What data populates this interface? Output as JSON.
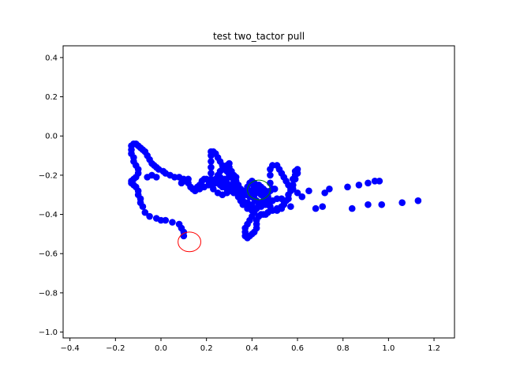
{
  "chart_data": {
    "type": "scatter",
    "title": "test two_tactor pull",
    "xlabel": "",
    "ylabel": "",
    "xlim": [
      -0.43,
      1.29
    ],
    "ylim": [
      -1.03,
      0.46
    ],
    "xticks": [
      -0.4,
      -0.2,
      0.0,
      0.2,
      0.4,
      0.6,
      0.8,
      1.0,
      1.2
    ],
    "xtick_labels": [
      "−0.4",
      "−0.2",
      "0.0",
      "0.2",
      "0.4",
      "0.6",
      "0.8",
      "1.0",
      "1.2"
    ],
    "yticks": [
      0.4,
      0.2,
      0.0,
      -0.2,
      -0.4,
      -0.6,
      -0.8,
      -1.0
    ],
    "ytick_labels": [
      "0.4",
      "0.2",
      "0.0",
      "−0.2",
      "−0.4",
      "−0.6",
      "−0.8",
      "−1.0"
    ],
    "grid": false,
    "series": [
      {
        "color": "#0000ff",
        "marker": "filled-circle",
        "points": [
          [
            0.1,
            -0.51
          ],
          [
            0.1,
            -0.49
          ],
          [
            0.09,
            -0.47
          ],
          [
            0.08,
            -0.45
          ],
          [
            0.05,
            -0.44
          ],
          [
            0.02,
            -0.43
          ],
          [
            0.0,
            -0.43
          ],
          [
            -0.02,
            -0.42
          ],
          [
            -0.05,
            -0.41
          ],
          [
            -0.07,
            -0.39
          ],
          [
            -0.08,
            -0.36
          ],
          [
            -0.09,
            -0.34
          ],
          [
            -0.09,
            -0.32
          ],
          [
            -0.1,
            -0.3
          ],
          [
            -0.1,
            -0.28
          ],
          [
            -0.11,
            -0.26
          ],
          [
            -0.12,
            -0.25
          ],
          [
            -0.13,
            -0.24
          ],
          [
            -0.13,
            -0.23
          ],
          [
            -0.12,
            -0.22
          ],
          [
            -0.11,
            -0.21
          ],
          [
            -0.1,
            -0.19
          ],
          [
            -0.1,
            -0.17
          ],
          [
            -0.11,
            -0.15
          ],
          [
            -0.12,
            -0.13
          ],
          [
            -0.12,
            -0.11
          ],
          [
            -0.13,
            -0.09
          ],
          [
            -0.13,
            -0.07
          ],
          [
            -0.13,
            -0.05
          ],
          [
            -0.12,
            -0.04
          ],
          [
            -0.11,
            -0.04
          ],
          [
            -0.1,
            -0.05
          ],
          [
            -0.09,
            -0.06
          ],
          [
            -0.08,
            -0.07
          ],
          [
            -0.07,
            -0.08
          ],
          [
            -0.06,
            -0.1
          ],
          [
            -0.05,
            -0.12
          ],
          [
            -0.04,
            -0.14
          ],
          [
            -0.03,
            -0.15
          ],
          [
            -0.02,
            -0.16
          ],
          [
            -0.01,
            -0.17
          ],
          [
            0.01,
            -0.18
          ],
          [
            0.02,
            -0.19
          ],
          [
            0.04,
            -0.2
          ],
          [
            0.06,
            -0.21
          ],
          [
            0.08,
            -0.21
          ],
          [
            0.1,
            -0.22
          ],
          [
            0.11,
            -0.23
          ],
          [
            0.12,
            -0.24
          ],
          [
            0.13,
            -0.26
          ],
          [
            0.14,
            -0.27
          ],
          [
            0.15,
            -0.27
          ],
          [
            0.16,
            -0.26
          ],
          [
            0.17,
            -0.25
          ],
          [
            0.18,
            -0.23
          ],
          [
            0.19,
            -0.22
          ],
          [
            0.2,
            -0.22
          ],
          [
            0.21,
            -0.23
          ],
          [
            0.22,
            -0.22
          ],
          [
            0.22,
            -0.19
          ],
          [
            0.22,
            -0.16
          ],
          [
            0.22,
            -0.13
          ],
          [
            0.22,
            -0.1
          ],
          [
            0.22,
            -0.08
          ],
          [
            0.23,
            -0.08
          ],
          [
            0.24,
            -0.09
          ],
          [
            0.25,
            -0.11
          ],
          [
            0.26,
            -0.13
          ],
          [
            0.27,
            -0.15
          ],
          [
            0.28,
            -0.17
          ],
          [
            0.29,
            -0.18
          ],
          [
            0.3,
            -0.19
          ],
          [
            0.31,
            -0.21
          ],
          [
            0.32,
            -0.23
          ],
          [
            0.33,
            -0.24
          ],
          [
            0.34,
            -0.25
          ],
          [
            0.35,
            -0.27
          ],
          [
            0.36,
            -0.28
          ],
          [
            0.37,
            -0.29
          ],
          [
            0.38,
            -0.3
          ],
          [
            0.39,
            -0.3
          ],
          [
            0.4,
            -0.28
          ],
          [
            0.41,
            -0.26
          ],
          [
            0.42,
            -0.25
          ],
          [
            0.43,
            -0.26
          ],
          [
            0.44,
            -0.27
          ],
          [
            0.45,
            -0.27
          ],
          [
            0.46,
            -0.28
          ],
          [
            0.47,
            -0.29
          ],
          [
            0.47,
            -0.31
          ],
          [
            0.46,
            -0.32
          ],
          [
            0.45,
            -0.33
          ],
          [
            0.44,
            -0.34
          ],
          [
            0.43,
            -0.35
          ],
          [
            0.42,
            -0.37
          ],
          [
            0.41,
            -0.39
          ],
          [
            0.4,
            -0.41
          ],
          [
            0.39,
            -0.43
          ],
          [
            0.38,
            -0.45
          ],
          [
            0.37,
            -0.47
          ],
          [
            0.37,
            -0.49
          ],
          [
            0.37,
            -0.51
          ],
          [
            0.38,
            -0.52
          ],
          [
            0.39,
            -0.51
          ],
          [
            0.4,
            -0.5
          ],
          [
            0.41,
            -0.49
          ],
          [
            0.42,
            -0.47
          ],
          [
            0.42,
            -0.45
          ],
          [
            0.42,
            -0.43
          ],
          [
            0.43,
            -0.41
          ],
          [
            0.44,
            -0.4
          ],
          [
            0.45,
            -0.4
          ],
          [
            0.46,
            -0.4
          ],
          [
            0.47,
            -0.39
          ],
          [
            0.49,
            -0.38
          ],
          [
            0.51,
            -0.38
          ],
          [
            0.53,
            -0.37
          ],
          [
            0.54,
            -0.35
          ],
          [
            0.54,
            -0.33
          ],
          [
            0.53,
            -0.32
          ],
          [
            0.51,
            -0.32
          ],
          [
            0.49,
            -0.33
          ],
          [
            0.47,
            -0.34
          ],
          [
            0.45,
            -0.35
          ],
          [
            0.43,
            -0.34
          ],
          [
            0.41,
            -0.32
          ],
          [
            0.39,
            -0.31
          ],
          [
            0.37,
            -0.3
          ],
          [
            0.35,
            -0.29
          ],
          [
            0.33,
            -0.28
          ],
          [
            0.31,
            -0.28
          ],
          [
            0.29,
            -0.27
          ],
          [
            0.27,
            -0.26
          ],
          [
            0.26,
            -0.25
          ],
          [
            0.24,
            -0.24
          ],
          [
            0.23,
            -0.24
          ],
          [
            0.21,
            -0.25
          ],
          [
            0.19,
            -0.26
          ],
          [
            0.17,
            -0.27
          ],
          [
            0.15,
            -0.28
          ],
          [
            0.14,
            -0.27
          ],
          [
            0.23,
            -0.27
          ],
          [
            0.25,
            -0.29
          ],
          [
            0.27,
            -0.3
          ],
          [
            0.29,
            -0.29
          ],
          [
            0.31,
            -0.27
          ],
          [
            0.32,
            -0.25
          ],
          [
            0.33,
            -0.23
          ],
          [
            0.33,
            -0.21
          ],
          [
            0.32,
            -0.2
          ],
          [
            0.3,
            -0.21
          ],
          [
            0.28,
            -0.22
          ],
          [
            0.27,
            -0.24
          ],
          [
            0.28,
            -0.26
          ],
          [
            0.3,
            -0.27
          ],
          [
            0.32,
            -0.29
          ],
          [
            0.34,
            -0.31
          ],
          [
            0.36,
            -0.33
          ],
          [
            0.38,
            -0.34
          ],
          [
            0.4,
            -0.35
          ],
          [
            0.42,
            -0.33
          ],
          [
            0.44,
            -0.3
          ],
          [
            0.45,
            -0.28
          ],
          [
            0.44,
            -0.26
          ],
          [
            0.43,
            -0.25
          ],
          [
            0.41,
            -0.24
          ],
          [
            0.4,
            -0.23
          ],
          [
            0.39,
            -0.24
          ],
          [
            0.38,
            -0.26
          ],
          [
            0.38,
            -0.28
          ],
          [
            0.39,
            -0.3
          ],
          [
            0.41,
            -0.3
          ],
          [
            0.42,
            -0.29
          ],
          [
            0.42,
            -0.27
          ],
          [
            0.41,
            -0.26
          ],
          [
            0.43,
            -0.28
          ],
          [
            0.44,
            -0.29
          ],
          [
            0.46,
            -0.3
          ],
          [
            0.47,
            -0.29
          ],
          [
            0.48,
            -0.28
          ],
          [
            0.49,
            -0.27
          ],
          [
            0.48,
            -0.24
          ],
          [
            0.48,
            -0.2
          ],
          [
            0.48,
            -0.17
          ],
          [
            0.49,
            -0.15
          ],
          [
            0.51,
            -0.15
          ],
          [
            0.52,
            -0.17
          ],
          [
            0.53,
            -0.19
          ],
          [
            0.54,
            -0.21
          ],
          [
            0.55,
            -0.23
          ],
          [
            0.56,
            -0.25
          ],
          [
            0.57,
            -0.27
          ],
          [
            0.58,
            -0.27
          ],
          [
            0.58,
            -0.25
          ],
          [
            0.58,
            -0.22
          ],
          [
            0.59,
            -0.2
          ],
          [
            0.59,
            -0.18
          ],
          [
            0.6,
            -0.17
          ],
          [
            0.6,
            -0.19
          ],
          [
            0.59,
            -0.22
          ],
          [
            0.58,
            -0.25
          ],
          [
            0.57,
            -0.28
          ],
          [
            0.56,
            -0.3
          ],
          [
            0.55,
            -0.33
          ],
          [
            0.54,
            -0.35
          ],
          [
            0.53,
            -0.36
          ],
          [
            0.51,
            -0.37
          ],
          [
            0.48,
            -0.36
          ],
          [
            0.46,
            -0.35
          ],
          [
            0.44,
            -0.36
          ],
          [
            0.42,
            -0.37
          ],
          [
            0.4,
            -0.38
          ],
          [
            0.38,
            -0.37
          ],
          [
            0.36,
            -0.35
          ],
          [
            0.35,
            -0.33
          ],
          [
            0.34,
            -0.31
          ],
          [
            0.36,
            -0.3
          ],
          [
            0.38,
            -0.29
          ],
          [
            0.33,
            -0.26
          ],
          [
            0.31,
            -0.25
          ],
          [
            0.29,
            -0.24
          ],
          [
            0.27,
            -0.23
          ],
          [
            0.25,
            -0.22
          ],
          [
            0.25,
            -0.2
          ],
          [
            0.26,
            -0.18
          ],
          [
            0.27,
            -0.17
          ],
          [
            0.28,
            -0.16
          ],
          [
            0.29,
            -0.15
          ],
          [
            0.3,
            -0.14
          ],
          [
            0.3,
            -0.16
          ],
          [
            0.31,
            -0.18
          ],
          [
            0.3,
            -0.2
          ],
          [
            0.26,
            -0.21
          ],
          [
            0.24,
            -0.22
          ],
          [
            0.12,
            -0.22
          ],
          [
            0.1,
            -0.23
          ],
          [
            0.09,
            -0.24
          ],
          [
            -0.02,
            -0.21
          ],
          [
            -0.04,
            -0.2
          ],
          [
            -0.06,
            -0.21
          ],
          [
            0.5,
            -0.27
          ],
          [
            0.56,
            -0.32
          ],
          [
            0.57,
            -0.36
          ],
          [
            0.62,
            -0.31
          ],
          [
            0.6,
            -0.29
          ],
          [
            0.65,
            -0.28
          ],
          [
            0.68,
            -0.37
          ],
          [
            0.71,
            -0.36
          ],
          [
            0.72,
            -0.29
          ],
          [
            0.74,
            -0.27
          ],
          [
            0.82,
            -0.26
          ],
          [
            0.84,
            -0.37
          ],
          [
            0.87,
            -0.25
          ],
          [
            0.91,
            -0.24
          ],
          [
            0.91,
            -0.35
          ],
          [
            0.94,
            -0.23
          ],
          [
            0.96,
            -0.23
          ],
          [
            0.97,
            -0.35
          ],
          [
            1.06,
            -0.34
          ],
          [
            1.13,
            -0.33
          ]
        ]
      }
    ],
    "overlays": [
      {
        "shape": "ellipse",
        "color": "#ff0000",
        "center": [
          0.125,
          -0.54
        ],
        "rx": 0.05,
        "ry": 0.05,
        "fill": "none"
      },
      {
        "shape": "ellipse",
        "color": "#008000",
        "center": [
          0.43,
          -0.275
        ],
        "rx": 0.05,
        "ry": 0.05,
        "fill": "none"
      }
    ]
  }
}
